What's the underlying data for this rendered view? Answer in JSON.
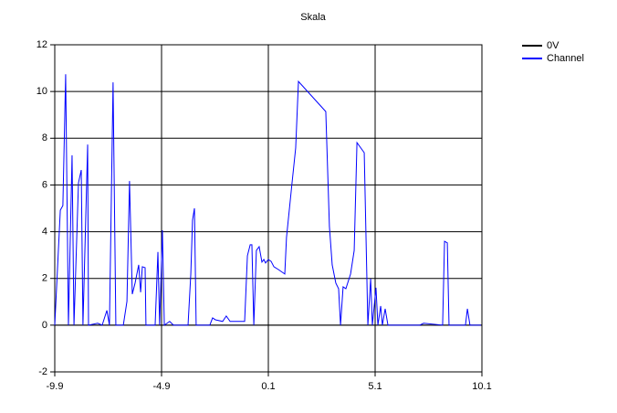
{
  "chart_data": {
    "type": "line",
    "title": "Skala",
    "xlim": [
      -9.9,
      10.1
    ],
    "xticks": [
      -9.9,
      -4.9,
      0.1,
      5.1,
      10.1
    ],
    "ylim": [
      -2,
      12
    ],
    "yticks": [
      -2,
      0,
      2,
      4,
      6,
      8,
      10,
      12
    ],
    "grid": true,
    "legend": "right",
    "series": [
      {
        "name": "0V",
        "color": "#000000",
        "x": [
          -9.9,
          10.1
        ],
        "values": [
          0,
          0
        ]
      },
      {
        "name": "Channel",
        "color": "#0000ff",
        "x": [
          -9.9,
          -9.64,
          -9.52,
          -9.39,
          -9.26,
          -9.09,
          -9.0,
          -8.79,
          -8.66,
          -8.58,
          -8.36,
          -8.32,
          -7.89,
          -7.68,
          -7.46,
          -7.34,
          -7.17,
          -7.04,
          -6.69,
          -6.52,
          -6.4,
          -6.27,
          -6.14,
          -5.97,
          -5.88,
          -5.8,
          -5.67,
          -5.63,
          -5.2,
          -5.07,
          -4.99,
          -4.86,
          -4.77,
          -4.52,
          -4.34,
          -3.66,
          -3.53,
          -3.45,
          -3.36,
          -3.28,
          -2.64,
          -2.51,
          -2.38,
          -2.04,
          -1.87,
          -1.69,
          -1.01,
          -0.88,
          -0.75,
          -0.67,
          -0.58,
          -0.46,
          -0.33,
          -0.2,
          -0.11,
          -0.03,
          0.1,
          0.23,
          0.36,
          0.57,
          0.87,
          0.95,
          1.21,
          1.38,
          1.51,
          2.79,
          2.96,
          3.09,
          3.26,
          3.39,
          3.48,
          3.6,
          3.73,
          3.95,
          4.12,
          4.25,
          4.59,
          4.76,
          4.89,
          4.97,
          5.14,
          5.23,
          5.36,
          5.44,
          5.57,
          5.7,
          7.19,
          7.37,
          8.26,
          8.35,
          8.48,
          8.56,
          9.33,
          9.42,
          9.54,
          10.06
        ],
        "values": [
          0,
          4.92,
          5.12,
          10.74,
          0,
          7.27,
          0,
          6.09,
          6.64,
          0,
          7.73,
          0,
          0.08,
          0,
          0.63,
          0,
          10.39,
          0,
          0,
          1.02,
          6.17,
          1.33,
          1.8,
          2.58,
          1.41,
          2.5,
          2.46,
          0,
          0,
          3.13,
          0,
          4.06,
          0,
          0.16,
          0,
          0,
          2.19,
          4.49,
          5.0,
          0,
          0,
          0.31,
          0.23,
          0.16,
          0.39,
          0.16,
          0.16,
          2.97,
          3.44,
          3.44,
          0,
          3.2,
          3.36,
          2.7,
          2.81,
          2.66,
          2.81,
          2.73,
          2.5,
          2.38,
          2.19,
          3.75,
          6.09,
          7.58,
          10.43,
          9.14,
          4.22,
          2.58,
          1.8,
          1.56,
          0,
          1.64,
          1.56,
          2.19,
          3.2,
          7.81,
          7.38,
          0,
          1.99,
          0,
          1.6,
          0,
          0.82,
          0,
          0.7,
          0,
          0,
          0.08,
          0,
          3.59,
          3.52,
          0,
          0,
          0.7,
          0,
          0
        ]
      }
    ]
  }
}
